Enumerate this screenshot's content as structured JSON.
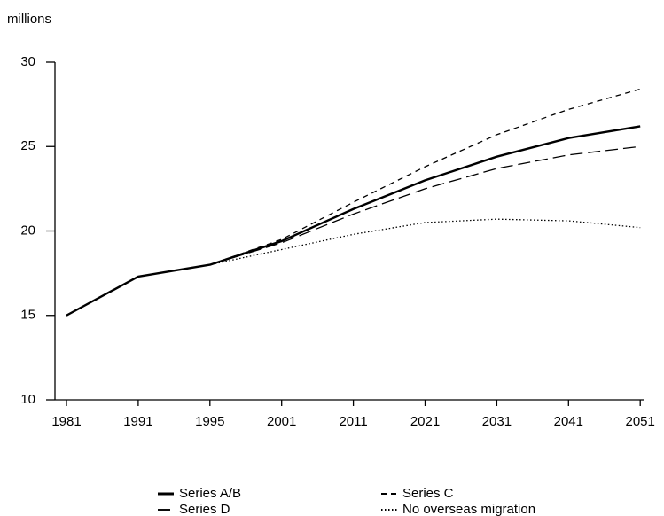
{
  "chart_data": {
    "type": "line",
    "y_label": "millions",
    "categories": [
      "1981",
      "1991",
      "1995",
      "2001",
      "2011",
      "2021",
      "2031",
      "2041",
      "2051"
    ],
    "series": [
      {
        "name": "Series A/B",
        "color": "#000000",
        "dash": "solid",
        "values": [
          15.0,
          17.3,
          18.0,
          19.4,
          21.3,
          23.0,
          24.4,
          25.5,
          26.2
        ]
      },
      {
        "name": "Series C",
        "color": "#000000",
        "dash": "short",
        "values": [
          15.0,
          17.3,
          18.0,
          19.5,
          21.7,
          23.8,
          25.7,
          27.2,
          28.4
        ]
      },
      {
        "name": "Series D",
        "color": "#000000",
        "dash": "long",
        "values": [
          15.0,
          17.3,
          18.0,
          19.3,
          21.0,
          22.5,
          23.7,
          24.5,
          25.0
        ]
      },
      {
        "name": "No overseas migration",
        "color": "#000000",
        "dash": "dotted",
        "values": [
          15.0,
          17.3,
          18.0,
          18.9,
          19.8,
          20.5,
          20.7,
          20.6,
          20.2
        ]
      }
    ],
    "ylim": [
      10,
      30
    ],
    "yticks": [
      10,
      15,
      20,
      25,
      30
    ],
    "grid": false
  }
}
